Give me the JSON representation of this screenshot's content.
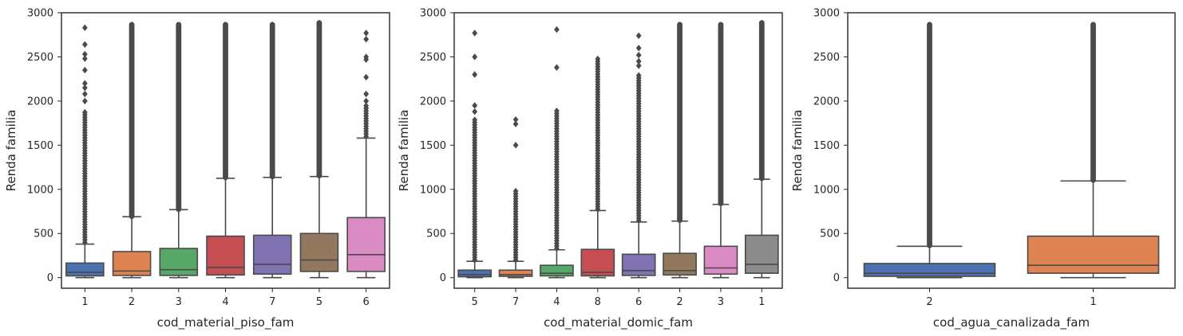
{
  "chart_data": [
    {
      "type": "box",
      "xlabel": "cod_material_piso_fam",
      "ylabel": "Renda familia",
      "ylim": [
        -120,
        3000
      ],
      "yticks": [
        0,
        500,
        1000,
        1500,
        2000,
        2500,
        3000
      ],
      "categories": [
        "1",
        "2",
        "3",
        "4",
        "7",
        "5",
        "6"
      ],
      "colors": [
        "#4c72b0",
        "#dd8452",
        "#55a868",
        "#c44e52",
        "#8172b3",
        "#937860",
        "#da8bc3"
      ],
      "boxes": [
        {
          "whislo": 0,
          "q1": 20,
          "med": 60,
          "q3": 165,
          "whishi": 380,
          "fliers_from": 400,
          "fliers_to": 1900,
          "flier_mode": "dense",
          "extra_outliers": [
            2000,
            2080,
            2150,
            2200,
            2350,
            2480,
            2530,
            2640,
            2830
          ]
        },
        {
          "whislo": 0,
          "q1": 25,
          "med": 75,
          "q3": 295,
          "whishi": 690,
          "fliers_from": 700,
          "fliers_to": 2860,
          "flier_mode": "solid",
          "extra_outliers": []
        },
        {
          "whislo": 0,
          "q1": 25,
          "med": 90,
          "q3": 330,
          "whishi": 770,
          "fliers_from": 780,
          "fliers_to": 2860,
          "flier_mode": "solid",
          "extra_outliers": []
        },
        {
          "whislo": 0,
          "q1": 30,
          "med": 115,
          "q3": 470,
          "whishi": 1125,
          "fliers_from": 1140,
          "fliers_to": 2860,
          "flier_mode": "solid",
          "extra_outliers": []
        },
        {
          "whislo": 0,
          "q1": 40,
          "med": 150,
          "q3": 480,
          "whishi": 1135,
          "fliers_from": 1150,
          "fliers_to": 2860,
          "flier_mode": "solid",
          "extra_outliers": []
        },
        {
          "whislo": 0,
          "q1": 70,
          "med": 200,
          "q3": 500,
          "whishi": 1145,
          "fliers_from": 1160,
          "fliers_to": 2880,
          "flier_mode": "solid",
          "extra_outliers": []
        },
        {
          "whislo": 0,
          "q1": 70,
          "med": 260,
          "q3": 680,
          "whishi": 1580,
          "fliers_from": 1600,
          "fliers_to": 1950,
          "flier_mode": "dense",
          "extra_outliers": [
            2000,
            2080,
            2270,
            2470,
            2500,
            2700,
            2770
          ]
        }
      ]
    },
    {
      "type": "box",
      "xlabel": "cod_material_domic_fam",
      "ylabel": "Renda familia",
      "ylim": [
        -120,
        3000
      ],
      "yticks": [
        0,
        500,
        1000,
        1500,
        2000,
        2500,
        3000
      ],
      "categories": [
        "5",
        "7",
        "4",
        "8",
        "6",
        "2",
        "3",
        "1"
      ],
      "colors": [
        "#4c72b0",
        "#dd8452",
        "#55a868",
        "#c44e52",
        "#8172b3",
        "#937860",
        "#da8bc3",
        "#8c8c8c"
      ],
      "boxes": [
        {
          "whislo": 0,
          "q1": 10,
          "med": 35,
          "q3": 85,
          "whishi": 185,
          "fliers_from": 200,
          "fliers_to": 1800,
          "flier_mode": "dense",
          "extra_outliers": [
            1880,
            1950,
            2300,
            2500,
            2770
          ]
        },
        {
          "whislo": 0,
          "q1": 15,
          "med": 35,
          "q3": 85,
          "whishi": 185,
          "fliers_from": 200,
          "fliers_to": 1000,
          "flier_mode": "dense",
          "extra_outliers": [
            1500,
            1740,
            1790
          ]
        },
        {
          "whislo": 0,
          "q1": 20,
          "med": 50,
          "q3": 140,
          "whishi": 315,
          "fliers_from": 330,
          "fliers_to": 1900,
          "flier_mode": "dense",
          "extra_outliers": [
            2380,
            2810
          ]
        },
        {
          "whislo": 0,
          "q1": 20,
          "med": 60,
          "q3": 320,
          "whishi": 760,
          "fliers_from": 775,
          "fliers_to": 2500,
          "flier_mode": "dense",
          "extra_outliers": []
        },
        {
          "whislo": 0,
          "q1": 25,
          "med": 80,
          "q3": 265,
          "whishi": 630,
          "fliers_from": 645,
          "fliers_to": 2300,
          "flier_mode": "dense",
          "extra_outliers": [
            2400,
            2450,
            2520,
            2600,
            2740
          ]
        },
        {
          "whislo": 0,
          "q1": 30,
          "med": 80,
          "q3": 275,
          "whishi": 640,
          "fliers_from": 655,
          "fliers_to": 2860,
          "flier_mode": "solid",
          "extra_outliers": []
        },
        {
          "whislo": 0,
          "q1": 40,
          "med": 110,
          "q3": 355,
          "whishi": 830,
          "fliers_from": 845,
          "fliers_to": 2860,
          "flier_mode": "solid",
          "extra_outliers": []
        },
        {
          "whislo": 0,
          "q1": 50,
          "med": 150,
          "q3": 480,
          "whishi": 1115,
          "fliers_from": 1130,
          "fliers_to": 2880,
          "flier_mode": "solid",
          "extra_outliers": []
        }
      ]
    },
    {
      "type": "box",
      "xlabel": "cod_agua_canalizada_fam",
      "ylabel": "Renda familia",
      "ylim": [
        -120,
        3000
      ],
      "yticks": [
        0,
        500,
        1000,
        1500,
        2000,
        2500,
        3000
      ],
      "categories": [
        "2",
        "1"
      ],
      "colors": [
        "#4c72b0",
        "#dd8452"
      ],
      "boxes": [
        {
          "whislo": 0,
          "q1": 15,
          "med": 50,
          "q3": 160,
          "whishi": 355,
          "fliers_from": 370,
          "fliers_to": 2860,
          "flier_mode": "solid",
          "extra_outliers": []
        },
        {
          "whislo": 0,
          "q1": 50,
          "med": 140,
          "q3": 470,
          "whishi": 1095,
          "fliers_from": 1110,
          "fliers_to": 2860,
          "flier_mode": "solid",
          "extra_outliers": []
        }
      ]
    }
  ]
}
